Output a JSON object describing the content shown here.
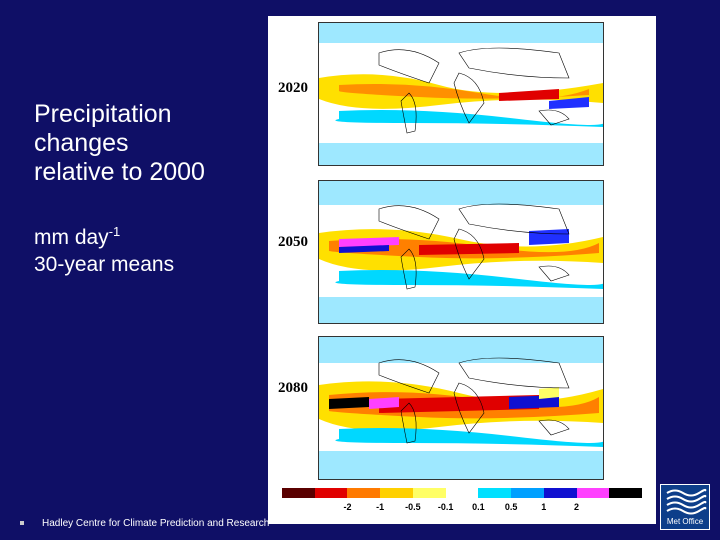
{
  "slide": {
    "title_lines": [
      "Precipitation",
      "changes",
      "relative to 2000"
    ],
    "units_text": "mm day",
    "units_superscript": "-1",
    "means_text": "30-year means",
    "footer": "Hadley Centre for Climate Prediction and Research",
    "logo_text": "Met Office"
  },
  "figure": {
    "years": [
      "2020",
      "2050",
      "2080"
    ],
    "colorbar": {
      "colors": [
        "#5a0000",
        "#e00000",
        "#ff7a00",
        "#ffd000",
        "#ffff66",
        "#ffffff",
        "#00e0ff",
        "#00a0ff",
        "#1010d0",
        "#ff40ff",
        "#000000"
      ],
      "labels": [
        "-2",
        "-1",
        "-0.5",
        "-0.1",
        "0.1",
        "0.5",
        "1",
        "2"
      ]
    }
  }
}
